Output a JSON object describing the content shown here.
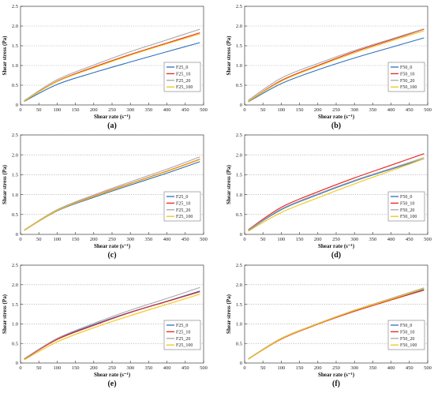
{
  "axes": {
    "xlabel": "Shear rate (s⁻¹)",
    "ylabel": "Shear stress (Pa)",
    "x_ticks": [
      "0",
      "50",
      "100",
      "150",
      "200",
      "250",
      "300",
      "350",
      "400",
      "450",
      "500"
    ],
    "y_ticks": [
      "0",
      "0.5",
      "1.0",
      "1.5",
      "2.0",
      "2.5"
    ]
  },
  "colors": {
    "series": [
      "#2e6fbd",
      "#e8231f",
      "#a8a8a8",
      "#f2c50f"
    ]
  },
  "chart_data": [
    {
      "type": "line",
      "panel": "(a)",
      "xlim": [
        0,
        500
      ],
      "ylim": [
        0,
        2.5
      ],
      "grid": true,
      "legend": "lower-right",
      "x": [
        10,
        100,
        200,
        300,
        400,
        490
      ],
      "series": [
        {
          "name": "F25_0",
          "values": [
            0.09,
            0.52,
            0.82,
            1.09,
            1.35,
            1.58
          ]
        },
        {
          "name": "F25_10",
          "values": [
            0.1,
            0.6,
            0.96,
            1.28,
            1.57,
            1.83
          ]
        },
        {
          "name": "F25_20",
          "values": [
            0.11,
            0.64,
            1.01,
            1.35,
            1.65,
            1.92
          ]
        },
        {
          "name": "F25_100",
          "values": [
            0.1,
            0.59,
            0.94,
            1.26,
            1.55,
            1.8
          ]
        }
      ]
    },
    {
      "type": "line",
      "panel": "(b)",
      "xlim": [
        0,
        500
      ],
      "ylim": [
        0,
        2.5
      ],
      "grid": true,
      "legend": "lower-right",
      "x": [
        10,
        100,
        200,
        300,
        400,
        490
      ],
      "series": [
        {
          "name": "F50_0",
          "values": [
            0.08,
            0.54,
            0.89,
            1.19,
            1.46,
            1.7
          ]
        },
        {
          "name": "F50_10",
          "values": [
            0.09,
            0.62,
            1.0,
            1.35,
            1.65,
            1.92
          ]
        },
        {
          "name": "F50_20",
          "values": [
            0.12,
            0.68,
            1.05,
            1.38,
            1.67,
            1.93
          ]
        },
        {
          "name": "F50_100",
          "values": [
            0.09,
            0.6,
            0.98,
            1.32,
            1.62,
            1.88
          ]
        }
      ]
    },
    {
      "type": "line",
      "panel": "(c)",
      "xlim": [
        0,
        500
      ],
      "ylim": [
        0,
        2.5
      ],
      "grid": true,
      "legend": "lower-right",
      "x": [
        10,
        100,
        200,
        300,
        400,
        490
      ],
      "series": [
        {
          "name": "F25_0",
          "values": [
            0.1,
            0.59,
            0.93,
            1.24,
            1.54,
            1.83
          ]
        },
        {
          "name": "F25_10",
          "values": [
            0.1,
            0.6,
            0.96,
            1.28,
            1.59,
            1.89
          ]
        },
        {
          "name": "F25_20",
          "values": [
            0.11,
            0.62,
            0.99,
            1.32,
            1.64,
            1.95
          ]
        },
        {
          "name": "F25_100",
          "values": [
            0.1,
            0.6,
            0.95,
            1.27,
            1.58,
            1.88
          ]
        }
      ]
    },
    {
      "type": "line",
      "panel": "(d)",
      "xlim": [
        0,
        500
      ],
      "ylim": [
        0,
        2.5
      ],
      "grid": true,
      "legend": "lower-right",
      "x": [
        10,
        100,
        200,
        300,
        400,
        490
      ],
      "series": [
        {
          "name": "F50_0",
          "values": [
            0.1,
            0.62,
            1.0,
            1.34,
            1.64,
            1.9
          ]
        },
        {
          "name": "F50_10",
          "values": [
            0.12,
            0.68,
            1.07,
            1.42,
            1.74,
            2.03
          ]
        },
        {
          "name": "F50_20",
          "values": [
            0.11,
            0.64,
            1.02,
            1.36,
            1.66,
            1.93
          ]
        },
        {
          "name": "F50_100",
          "values": [
            0.08,
            0.55,
            0.92,
            1.27,
            1.6,
            1.9
          ]
        }
      ]
    },
    {
      "type": "line",
      "panel": "(e)",
      "xlim": [
        0,
        500
      ],
      "ylim": [
        0,
        2.5
      ],
      "grid": true,
      "legend": "lower-right",
      "x": [
        10,
        100,
        200,
        300,
        400,
        490
      ],
      "series": [
        {
          "name": "F25_0",
          "values": [
            0.1,
            0.61,
            0.98,
            1.3,
            1.58,
            1.84
          ]
        },
        {
          "name": "F25_10",
          "values": [
            0.1,
            0.6,
            0.96,
            1.29,
            1.57,
            1.82
          ]
        },
        {
          "name": "F25_20",
          "values": [
            0.11,
            0.63,
            1.01,
            1.35,
            1.65,
            1.93
          ]
        },
        {
          "name": "F25_100",
          "values": [
            0.08,
            0.54,
            0.9,
            1.21,
            1.5,
            1.76
          ]
        }
      ]
    },
    {
      "type": "line",
      "panel": "(f)",
      "xlim": [
        0,
        500
      ],
      "ylim": [
        0,
        2.5
      ],
      "grid": true,
      "legend": "lower-right",
      "x": [
        10,
        100,
        200,
        300,
        400,
        490
      ],
      "series": [
        {
          "name": "F50_0",
          "values": [
            0.1,
            0.62,
            1.0,
            1.33,
            1.62,
            1.88
          ]
        },
        {
          "name": "F50_10",
          "values": [
            0.1,
            0.61,
            0.99,
            1.32,
            1.61,
            1.86
          ]
        },
        {
          "name": "F50_20",
          "values": [
            0.11,
            0.63,
            1.01,
            1.35,
            1.65,
            1.92
          ]
        },
        {
          "name": "F50_100",
          "values": [
            0.1,
            0.62,
            1.0,
            1.34,
            1.63,
            1.9
          ]
        }
      ]
    }
  ]
}
